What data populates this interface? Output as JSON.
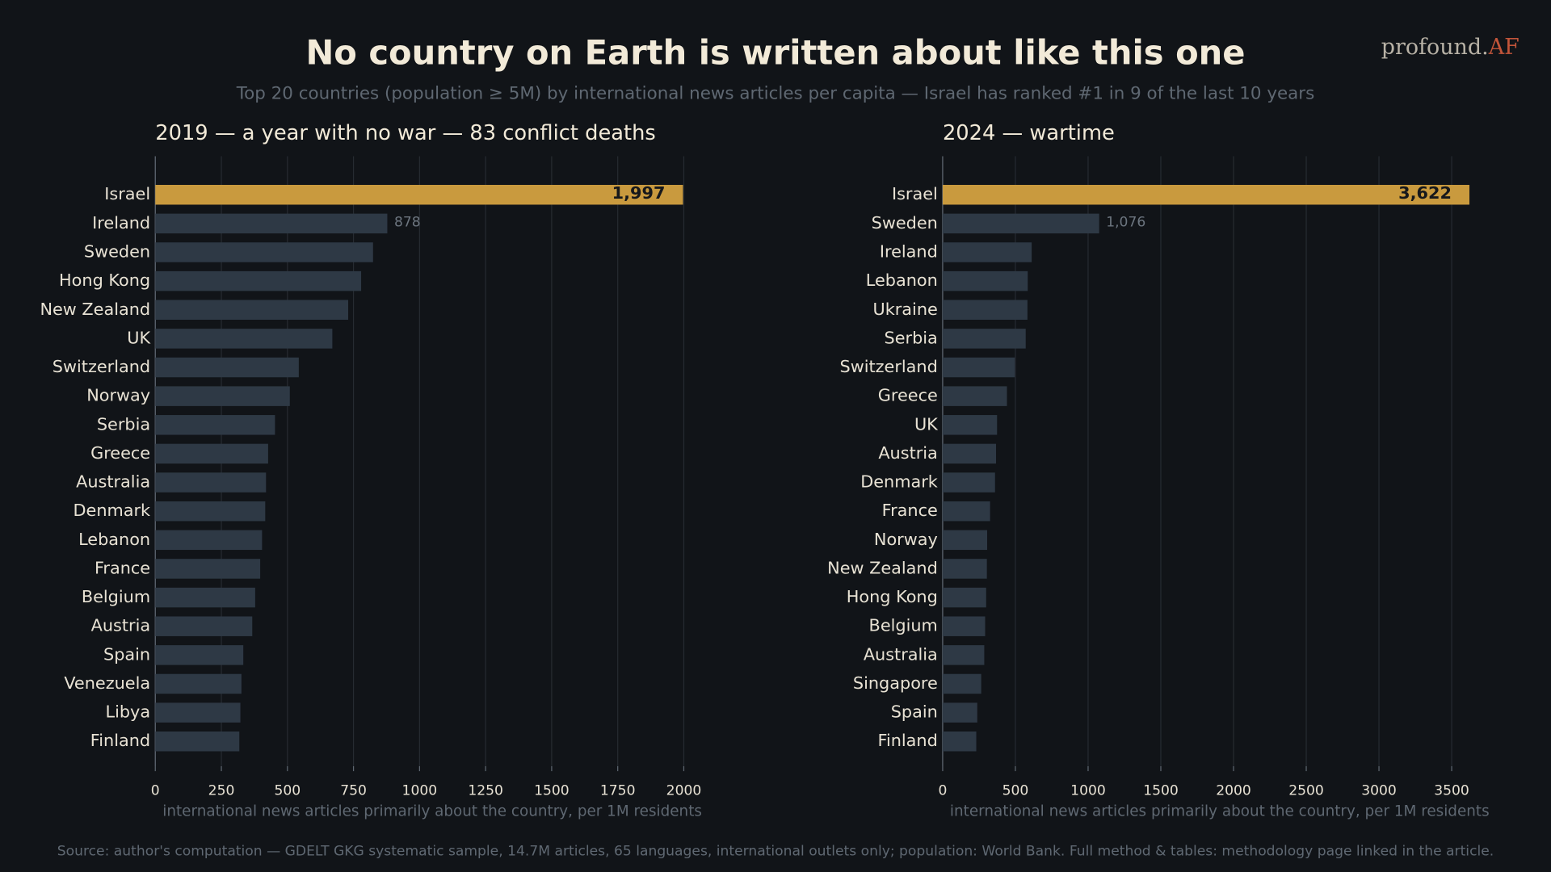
{
  "title": "No country on Earth is written about like this one",
  "subtitle": "Top 20 countries (population ≥ 5M) by international news articles per capita — Israel has ranked #1 in 9 of the last 10 years",
  "brand": "profound.",
  "brand_accent": "AF",
  "source": "Source: author's computation — GDELT GKG systematic sample, 14.7M articles, 65 languages, international outlets only; population: World Bank. Full method & tables: methodology page linked in the article.",
  "chart_data": [
    {
      "type": "barh",
      "title": "2019  —  a year with no war — 83 conflict deaths",
      "categories": [
        "Israel",
        "Ireland",
        "Sweden",
        "Hong Kong",
        "New Zealand",
        "UK",
        "Switzerland",
        "Norway",
        "Serbia",
        "Greece",
        "Australia",
        "Denmark",
        "Lebanon",
        "France",
        "Belgium",
        "Austria",
        "Spain",
        "Venezuela",
        "Libya",
        "Finland"
      ],
      "values": [
        1997,
        878,
        824,
        779,
        730,
        670,
        543,
        509,
        453,
        427,
        419,
        416,
        404,
        397,
        378,
        367,
        333,
        326,
        322,
        318
      ],
      "value_labels": [
        "1,997",
        "878",
        null,
        null,
        null,
        null,
        null,
        null,
        null,
        null,
        null,
        null,
        null,
        null,
        null,
        null,
        null,
        null,
        null,
        null
      ],
      "colors": [
        "#c99a3e",
        "#2e3945",
        "#2e3945",
        "#2e3945",
        "#2e3945",
        "#2e3945",
        "#2e3945",
        "#2e3945",
        "#2e3945",
        "#2e3945",
        "#2e3945",
        "#2e3945",
        "#2e3945",
        "#2e3945",
        "#2e3945",
        "#2e3945",
        "#2e3945",
        "#2e3945",
        "#2e3945",
        "#2e3945"
      ],
      "xlim": [
        0,
        2100
      ],
      "xticks": [
        0,
        250,
        500,
        750,
        1000,
        1250,
        1500,
        1750,
        2000
      ],
      "xlabel": "international news articles primarily about the country, per 1M residents",
      "grid": true
    },
    {
      "type": "barh",
      "title": "2024  —  wartime",
      "categories": [
        "Israel",
        "Sweden",
        "Ireland",
        "Lebanon",
        "Ukraine",
        "Serbia",
        "Switzerland",
        "Greece",
        "UK",
        "Austria",
        "Denmark",
        "France",
        "Norway",
        "New Zealand",
        "Hong Kong",
        "Belgium",
        "Australia",
        "Singapore",
        "Spain",
        "Finland"
      ],
      "values": [
        3622,
        1076,
        612,
        585,
        583,
        571,
        496,
        442,
        374,
        367,
        360,
        326,
        306,
        304,
        299,
        292,
        286,
        265,
        238,
        231
      ],
      "value_labels": [
        "3,622",
        "1,076",
        null,
        null,
        null,
        null,
        null,
        null,
        null,
        null,
        null,
        null,
        null,
        null,
        null,
        null,
        null,
        null,
        null,
        null
      ],
      "colors": [
        "#c99a3e",
        "#2e3945",
        "#2e3945",
        "#2e3945",
        "#2e3945",
        "#2e3945",
        "#2e3945",
        "#2e3945",
        "#2e3945",
        "#2e3945",
        "#2e3945",
        "#2e3945",
        "#2e3945",
        "#2e3945",
        "#2e3945",
        "#2e3945",
        "#2e3945",
        "#2e3945",
        "#2e3945",
        "#2e3945"
      ],
      "xlim": [
        0,
        3700
      ],
      "xticks": [
        0,
        500,
        1000,
        1500,
        2000,
        2500,
        3000,
        3500
      ],
      "xlabel": "international news articles primarily about the country, per 1M residents",
      "grid": true
    }
  ]
}
